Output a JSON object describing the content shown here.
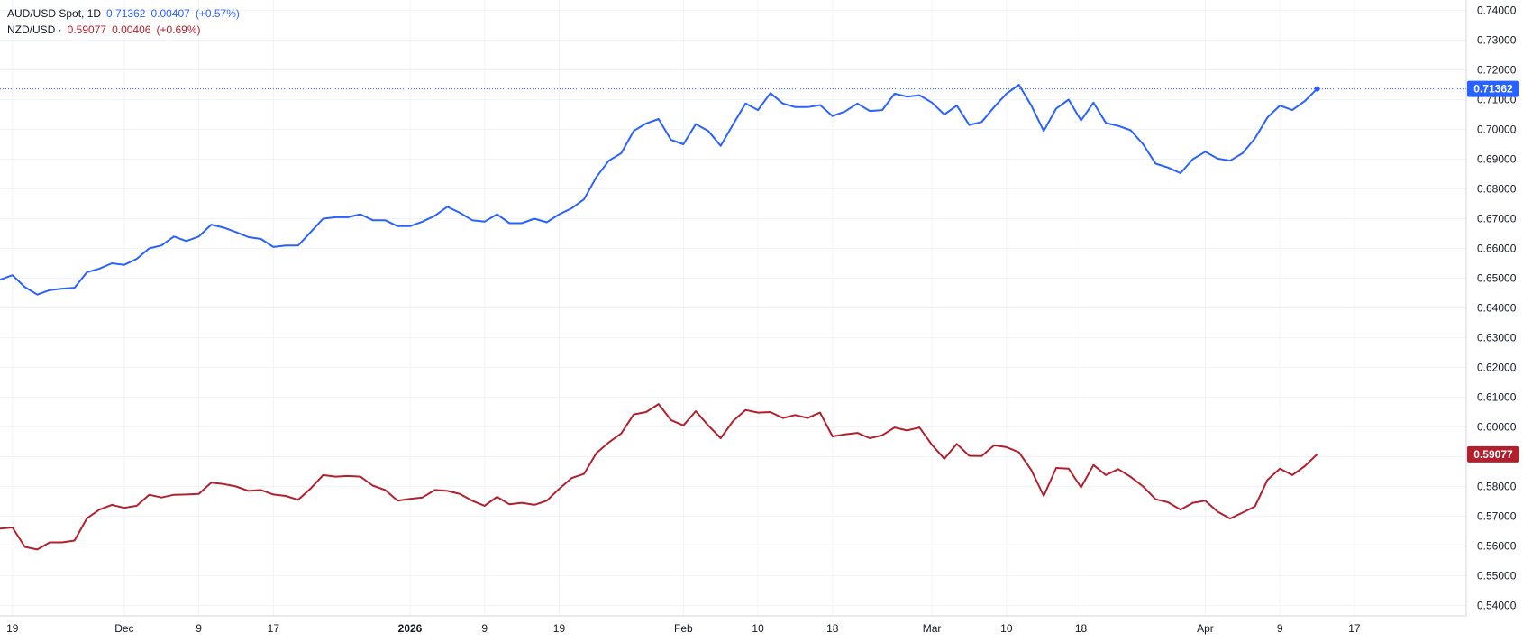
{
  "legend": {
    "aud": {
      "symbol": "AUD/USD Spot, 1D",
      "price": "0.71362",
      "change": "0.00407",
      "pct": "(+0.57%)"
    },
    "nzd": {
      "symbol": "NZD/USD ·",
      "price": "0.59077",
      "change": "0.00406",
      "pct": "(+0.69%)"
    }
  },
  "colors": {
    "aud": "#2962ff",
    "nzd": "#b2202e",
    "grid": "#f0f3fa",
    "axis_text": "#131722"
  },
  "chart_data": {
    "type": "line",
    "title": "",
    "ylim": [
      0.5365,
      0.7435
    ],
    "y_ticks": [
      "0.54000",
      "0.55000",
      "0.56000",
      "0.57000",
      "0.58000",
      "0.59000",
      "0.60000",
      "0.61000",
      "0.62000",
      "0.63000",
      "0.64000",
      "0.65000",
      "0.66000",
      "0.67000",
      "0.68000",
      "0.69000",
      "0.70000",
      "0.71000",
      "0.72000",
      "0.73000",
      "0.74000"
    ],
    "x_ticks": [
      "19",
      "Dec",
      "9",
      "17",
      "2026",
      "9",
      "19",
      "Feb",
      "10",
      "18",
      "Mar",
      "10",
      "18",
      "Apr",
      "9",
      "17"
    ],
    "x_tick_index": [
      1,
      10,
      16,
      22,
      33,
      39,
      45,
      55,
      61,
      67,
      75,
      81,
      87,
      97,
      103,
      109
    ],
    "x_range": [
      0,
      118
    ],
    "grid": true,
    "series": [
      {
        "name": "AUD/USD Spot",
        "last_label": "0.71362",
        "values": [
          0.6495,
          0.651,
          0.647,
          0.6445,
          0.646,
          0.6465,
          0.6468,
          0.652,
          0.6532,
          0.655,
          0.6545,
          0.6565,
          0.66,
          0.661,
          0.664,
          0.6625,
          0.664,
          0.668,
          0.667,
          0.6655,
          0.6638,
          0.6632,
          0.6605,
          0.661,
          0.661,
          0.6655,
          0.67,
          0.6705,
          0.6705,
          0.6715,
          0.6695,
          0.6695,
          0.6675,
          0.6675,
          0.669,
          0.671,
          0.674,
          0.672,
          0.6695,
          0.669,
          0.6715,
          0.6685,
          0.6685,
          0.67,
          0.6688,
          0.6715,
          0.6735,
          0.6765,
          0.684,
          0.6895,
          0.692,
          0.6995,
          0.702,
          0.7035,
          0.6965,
          0.695,
          0.7018,
          0.6995,
          0.6945,
          0.7017,
          0.7087,
          0.7065,
          0.7122,
          0.7087,
          0.7075,
          0.7075,
          0.7082,
          0.7045,
          0.706,
          0.7087,
          0.7062,
          0.7065,
          0.712,
          0.711,
          0.7115,
          0.709,
          0.705,
          0.708,
          0.7015,
          0.7025,
          0.7075,
          0.712,
          0.715,
          0.708,
          0.6995,
          0.707,
          0.71,
          0.703,
          0.709,
          0.7022,
          0.7012,
          0.6997,
          0.695,
          0.6885,
          0.6872,
          0.6853,
          0.69,
          0.6925,
          0.6902,
          0.6895,
          0.692,
          0.697,
          0.704,
          0.708,
          0.7065,
          0.7095,
          0.71362
        ]
      },
      {
        "name": "NZD/USD",
        "last_label": "0.59077",
        "values": [
          0.5658,
          0.5662,
          0.5597,
          0.5588,
          0.5612,
          0.5612,
          0.5618,
          0.5693,
          0.5722,
          0.5738,
          0.5728,
          0.5735,
          0.5772,
          0.5763,
          0.5772,
          0.5773,
          0.5775,
          0.5813,
          0.5808,
          0.58,
          0.5785,
          0.5788,
          0.5773,
          0.5768,
          0.5755,
          0.5793,
          0.5838,
          0.5833,
          0.5835,
          0.5833,
          0.5803,
          0.5788,
          0.5752,
          0.5758,
          0.5763,
          0.5788,
          0.5785,
          0.5775,
          0.5752,
          0.5735,
          0.5765,
          0.574,
          0.5745,
          0.5738,
          0.5752,
          0.5792,
          0.5828,
          0.5842,
          0.5912,
          0.5948,
          0.5978,
          0.6042,
          0.605,
          0.6077,
          0.6023,
          0.6005,
          0.6053,
          0.6005,
          0.5962,
          0.602,
          0.6057,
          0.6048,
          0.605,
          0.603,
          0.604,
          0.603,
          0.6048,
          0.5968,
          0.5975,
          0.598,
          0.5962,
          0.5972,
          0.5998,
          0.5988,
          0.5998,
          0.594,
          0.5893,
          0.5943,
          0.5903,
          0.5902,
          0.5938,
          0.5932,
          0.5915,
          0.5855,
          0.5768,
          0.5862,
          0.586,
          0.5797,
          0.5872,
          0.5838,
          0.5858,
          0.5832,
          0.58,
          0.5757,
          0.5747,
          0.5722,
          0.5745,
          0.5752,
          0.5715,
          0.5692,
          0.5712,
          0.5733,
          0.5822,
          0.586,
          0.5838,
          0.5868,
          0.59077
        ]
      }
    ]
  }
}
